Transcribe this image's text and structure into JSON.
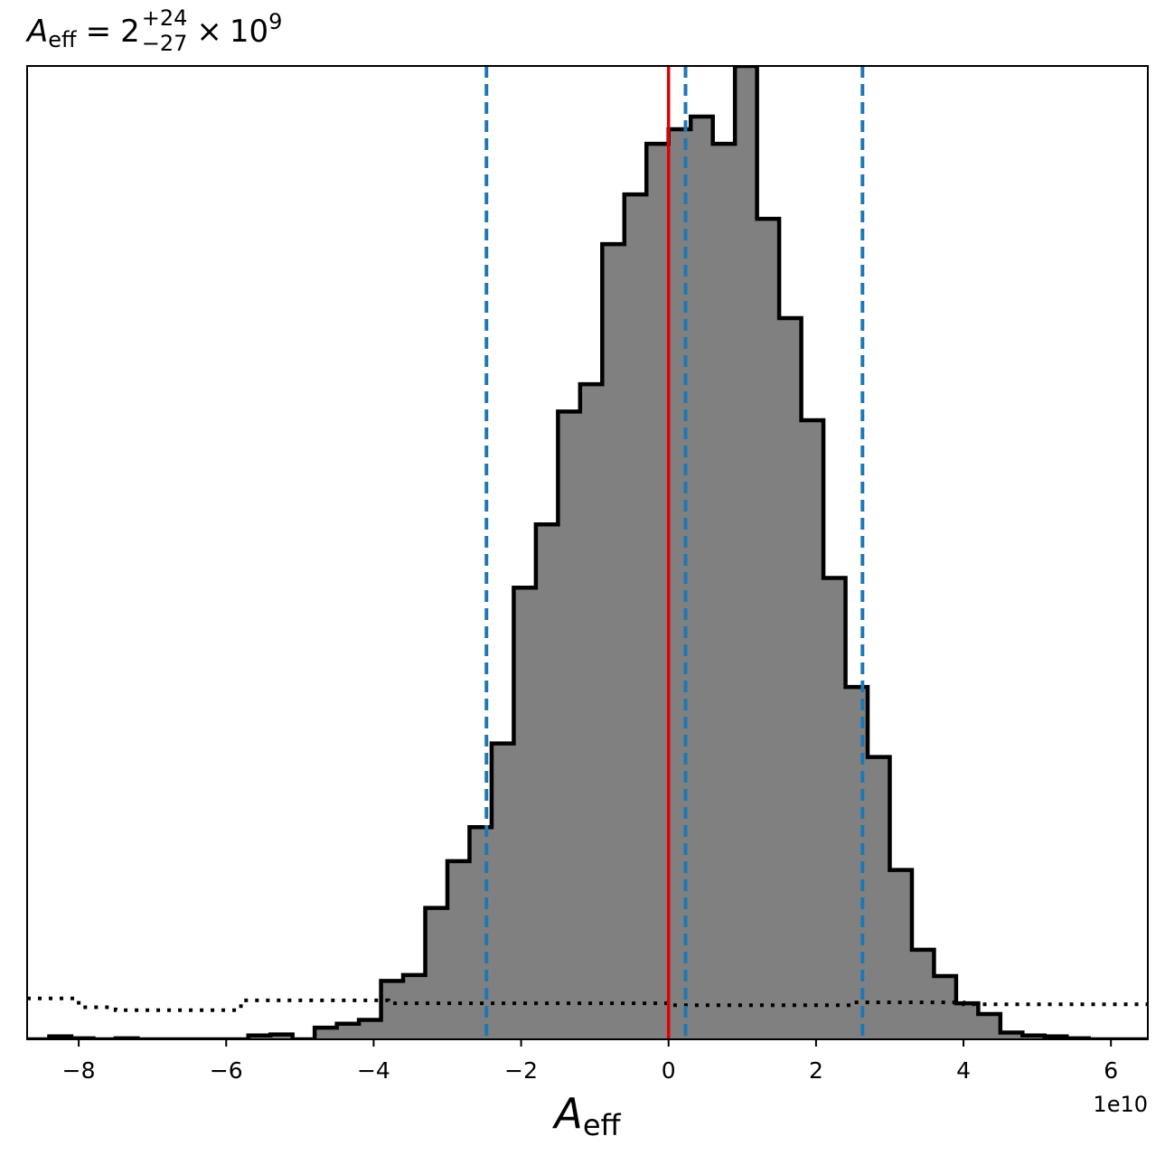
{
  "chart_data": {
    "type": "histogram",
    "title": {
      "symbol": "A",
      "subscript": "eff",
      "equals": "=",
      "base": "2",
      "plus": "+24",
      "minus": "−27",
      "times": "×",
      "power_base": "10",
      "power_exp": "9"
    },
    "xlabel": {
      "symbol": "A",
      "subscript": "eff"
    },
    "ylabel": "",
    "x_offset_label": "1e10",
    "xlim": [
      -8.7,
      6.5
    ],
    "ylim": [
      0,
      1000
    ],
    "x_ticks": [
      -8,
      -6,
      -4,
      -2,
      0,
      2,
      4,
      6
    ],
    "x_tick_labels": [
      "−8",
      "−6",
      "−4",
      "−2",
      "0",
      "2",
      "4",
      "6"
    ],
    "y_ticks_visible": false,
    "grid": false,
    "bin_edges": [
      -8.7,
      -8.4,
      -8.1,
      -7.8,
      -7.5,
      -7.2,
      -6.9,
      -6.6,
      -6.3,
      -6.0,
      -5.7,
      -5.4,
      -5.1,
      -4.8,
      -4.5,
      -4.2,
      -3.9,
      -3.6,
      -3.3,
      -3.0,
      -2.7,
      -2.4,
      -2.1,
      -1.8,
      -1.5,
      -1.2,
      -0.9,
      -0.6,
      -0.3,
      0.0,
      0.3,
      0.6,
      0.9,
      1.2,
      1.5,
      1.8,
      2.1,
      2.4,
      2.7,
      3.0,
      3.3,
      3.6,
      3.9,
      4.2,
      4.5,
      4.8,
      5.1,
      5.4,
      5.7,
      6.0,
      6.3,
      6.5
    ],
    "counts": [
      0,
      3,
      1,
      0,
      1,
      0,
      0,
      0,
      0,
      0,
      4,
      5,
      0,
      12,
      16,
      20,
      60,
      66,
      135,
      183,
      218,
      304,
      464,
      529,
      645,
      673,
      817,
      868,
      920,
      935,
      948,
      920,
      1000,
      843,
      741,
      636,
      474,
      362,
      290,
      174,
      92,
      65,
      37,
      26,
      7,
      4,
      3,
      1,
      0,
      0,
      0
    ],
    "hist_fill": "#808080",
    "hist_edge": "#000000",
    "prior_dotted": {
      "x": [
        -8.7,
        -8.0,
        -7.5,
        -6.0,
        -5.8,
        -4.0,
        -3.8,
        -2.0,
        0.0,
        2.0,
        2.5,
        4.0,
        6.0,
        6.5
      ],
      "y": [
        42,
        33,
        30,
        30,
        40,
        40,
        37,
        37,
        35,
        35,
        38,
        36,
        36,
        38
      ],
      "color": "#000000"
    },
    "vlines": [
      {
        "x": -2.47,
        "color": "#1f77b4",
        "style": "dashed"
      },
      {
        "x": 0.23,
        "color": "#1f77b4",
        "style": "dashed"
      },
      {
        "x": 2.63,
        "color": "#1f77b4",
        "style": "dashed"
      },
      {
        "x": 0.0,
        "color": "#e00000",
        "style": "solid"
      }
    ]
  }
}
